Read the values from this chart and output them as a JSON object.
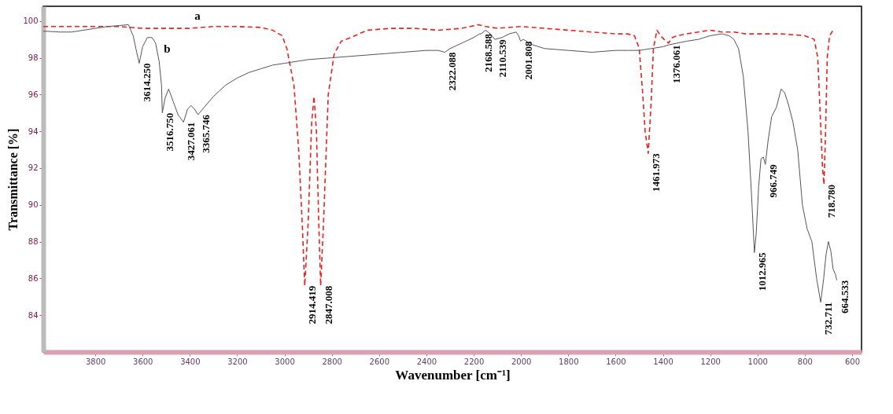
{
  "chart_data": {
    "type": "line",
    "xlabel": "Wavenumber [cm⁻¹]",
    "ylabel": "Transmittance [%]",
    "xlim": [
      4020,
      560
    ],
    "ylim": [
      82,
      100.8
    ],
    "xticks": [
      3800,
      3600,
      3400,
      3200,
      3000,
      2800,
      2600,
      2400,
      2200,
      2000,
      1800,
      1600,
      1400,
      1200,
      1000,
      800,
      600
    ],
    "yticks": [
      84,
      86,
      88,
      90,
      92,
      94,
      96,
      98,
      100
    ],
    "grid": false,
    "series": [
      {
        "name": "a",
        "color": "#e8221f",
        "line_style": "dashed",
        "x": [
          4020,
          3900,
          3800,
          3700,
          3600,
          3500,
          3400,
          3300,
          3200,
          3100,
          3050,
          3010,
          2990,
          2960,
          2940,
          2925,
          2914.419,
          2900,
          2885,
          2875,
          2865,
          2855,
          2847.008,
          2835,
          2815,
          2790,
          2760,
          2720,
          2650,
          2550,
          2450,
          2350,
          2250,
          2180,
          2150,
          2100,
          2000,
          1900,
          1800,
          1700,
          1600,
          1550,
          1520,
          1500,
          1485,
          1475,
          1461.973,
          1450,
          1440,
          1425,
          1410,
          1395,
          1376.061,
          1360,
          1340,
          1300,
          1200,
          1150,
          1100,
          1050,
          1000,
          900,
          800,
          760,
          745,
          735,
          725,
          718.78,
          712,
          705,
          695,
          680
        ],
        "values": [
          99.7,
          99.7,
          99.7,
          99.7,
          99.6,
          99.6,
          99.6,
          99.7,
          99.7,
          99.65,
          99.5,
          99.2,
          98.5,
          96.5,
          93,
          89,
          85.6,
          89,
          94.5,
          95.9,
          94,
          89,
          85.6,
          89,
          96,
          98.2,
          98.9,
          99.1,
          99.5,
          99.6,
          99.6,
          99.5,
          99.6,
          99.8,
          99.7,
          99.6,
          99.7,
          99.6,
          99.5,
          99.4,
          99.3,
          99.3,
          99.2,
          98.5,
          96,
          94,
          92.8,
          95.5,
          98.5,
          99.5,
          99.2,
          99.0,
          98.8,
          99.1,
          99.2,
          99.3,
          99.5,
          99.4,
          99.4,
          99.3,
          99.3,
          99.3,
          99.2,
          99.0,
          98,
          95,
          92,
          91.1,
          94,
          98,
          99.2,
          99.5
        ]
      },
      {
        "name": "b",
        "color": "#555555",
        "line_style": "solid",
        "x": [
          4020,
          3950,
          3900,
          3850,
          3800,
          3750,
          3700,
          3660,
          3640,
          3625,
          3614.25,
          3600,
          3580,
          3560,
          3545,
          3530,
          3520,
          3516.75,
          3505,
          3490,
          3470,
          3450,
          3427.061,
          3410,
          3395,
          3380,
          3365.746,
          3340,
          3300,
          3250,
          3200,
          3150,
          3100,
          3050,
          3000,
          2900,
          2800,
          2700,
          2600,
          2500,
          2400,
          2350,
          2322.088,
          2300,
          2250,
          2200,
          2175,
          2168.588,
          2150,
          2130,
          2110.539,
          2080,
          2050,
          2020,
          2010,
          2001.808,
          1990,
          1950,
          1900,
          1800,
          1700,
          1600,
          1550,
          1500,
          1450,
          1400,
          1376.061,
          1300,
          1250,
          1200,
          1150,
          1120,
          1100,
          1080,
          1060,
          1040,
          1025,
          1012.965,
          1005,
          995,
          985,
          975,
          966.749,
          955,
          940,
          920,
          900,
          885,
          870,
          850,
          830,
          810,
          790,
          770,
          750,
          732.711,
          720,
          710,
          700,
          690,
          680,
          670,
          664.533
        ],
        "values": [
          99.45,
          99.4,
          99.4,
          99.5,
          99.6,
          99.7,
          99.75,
          99.8,
          99.2,
          98.3,
          97.7,
          98.6,
          99.1,
          99.1,
          98.8,
          97.8,
          96.5,
          95.0,
          95.8,
          96.3,
          95.6,
          94.9,
          94.5,
          95.2,
          95.4,
          95.2,
          94.9,
          95.3,
          95.9,
          96.5,
          96.9,
          97.2,
          97.4,
          97.6,
          97.7,
          97.9,
          98.0,
          98.1,
          98.2,
          98.3,
          98.4,
          98.4,
          98.3,
          98.5,
          98.8,
          99.1,
          99.3,
          99.3,
          99.5,
          99.3,
          99.0,
          99.1,
          99.3,
          99.4,
          99.2,
          98.9,
          99.0,
          98.7,
          98.5,
          98.4,
          98.3,
          98.4,
          98.4,
          98.4,
          98.5,
          98.6,
          98.7,
          98.9,
          99.0,
          99.2,
          99.3,
          99.2,
          99.0,
          98.5,
          97,
          94,
          90.5,
          87.4,
          88.5,
          91,
          92.5,
          92.6,
          92.2,
          93.5,
          94.8,
          95.3,
          96.3,
          96.1,
          95.5,
          94.5,
          93,
          90,
          88.7,
          88,
          86,
          84.7,
          86,
          87.3,
          88.0,
          87.5,
          86.5,
          86.2,
          85.9
        ]
      }
    ],
    "annotations": [
      {
        "text": "3614.250",
        "x": 3614.25,
        "y": 97.7
      },
      {
        "text": "3516.750",
        "x": 3516.75,
        "y": 95.0
      },
      {
        "text": "3427.061",
        "x": 3427.061,
        "y": 94.5
      },
      {
        "text": "3365.746",
        "x": 3365.746,
        "y": 94.9
      },
      {
        "text": "2914.419",
        "x": 2914.419,
        "y": 85.6
      },
      {
        "text": "2847.008",
        "x": 2847.008,
        "y": 85.6
      },
      {
        "text": "2322.088",
        "x": 2322.088,
        "y": 98.3
      },
      {
        "text": "2168.588",
        "x": 2168.588,
        "y": 99.3
      },
      {
        "text": "2110.539",
        "x": 2110.539,
        "y": 99.0
      },
      {
        "text": "2001.808",
        "x": 2001.808,
        "y": 98.9
      },
      {
        "text": "1461.973",
        "x": 1461.973,
        "y": 92.8
      },
      {
        "text": "1376.061",
        "x": 1376.061,
        "y": 98.7
      },
      {
        "text": "1012.965",
        "x": 1012.965,
        "y": 87.4
      },
      {
        "text": "966.749",
        "x": 966.749,
        "y": 92.2
      },
      {
        "text": "718.780",
        "x": 718.78,
        "y": 91.1
      },
      {
        "text": "732.711",
        "x": 732.711,
        "y": 84.7
      },
      {
        "text": "664.533",
        "x": 664.533,
        "y": 85.9
      }
    ]
  }
}
